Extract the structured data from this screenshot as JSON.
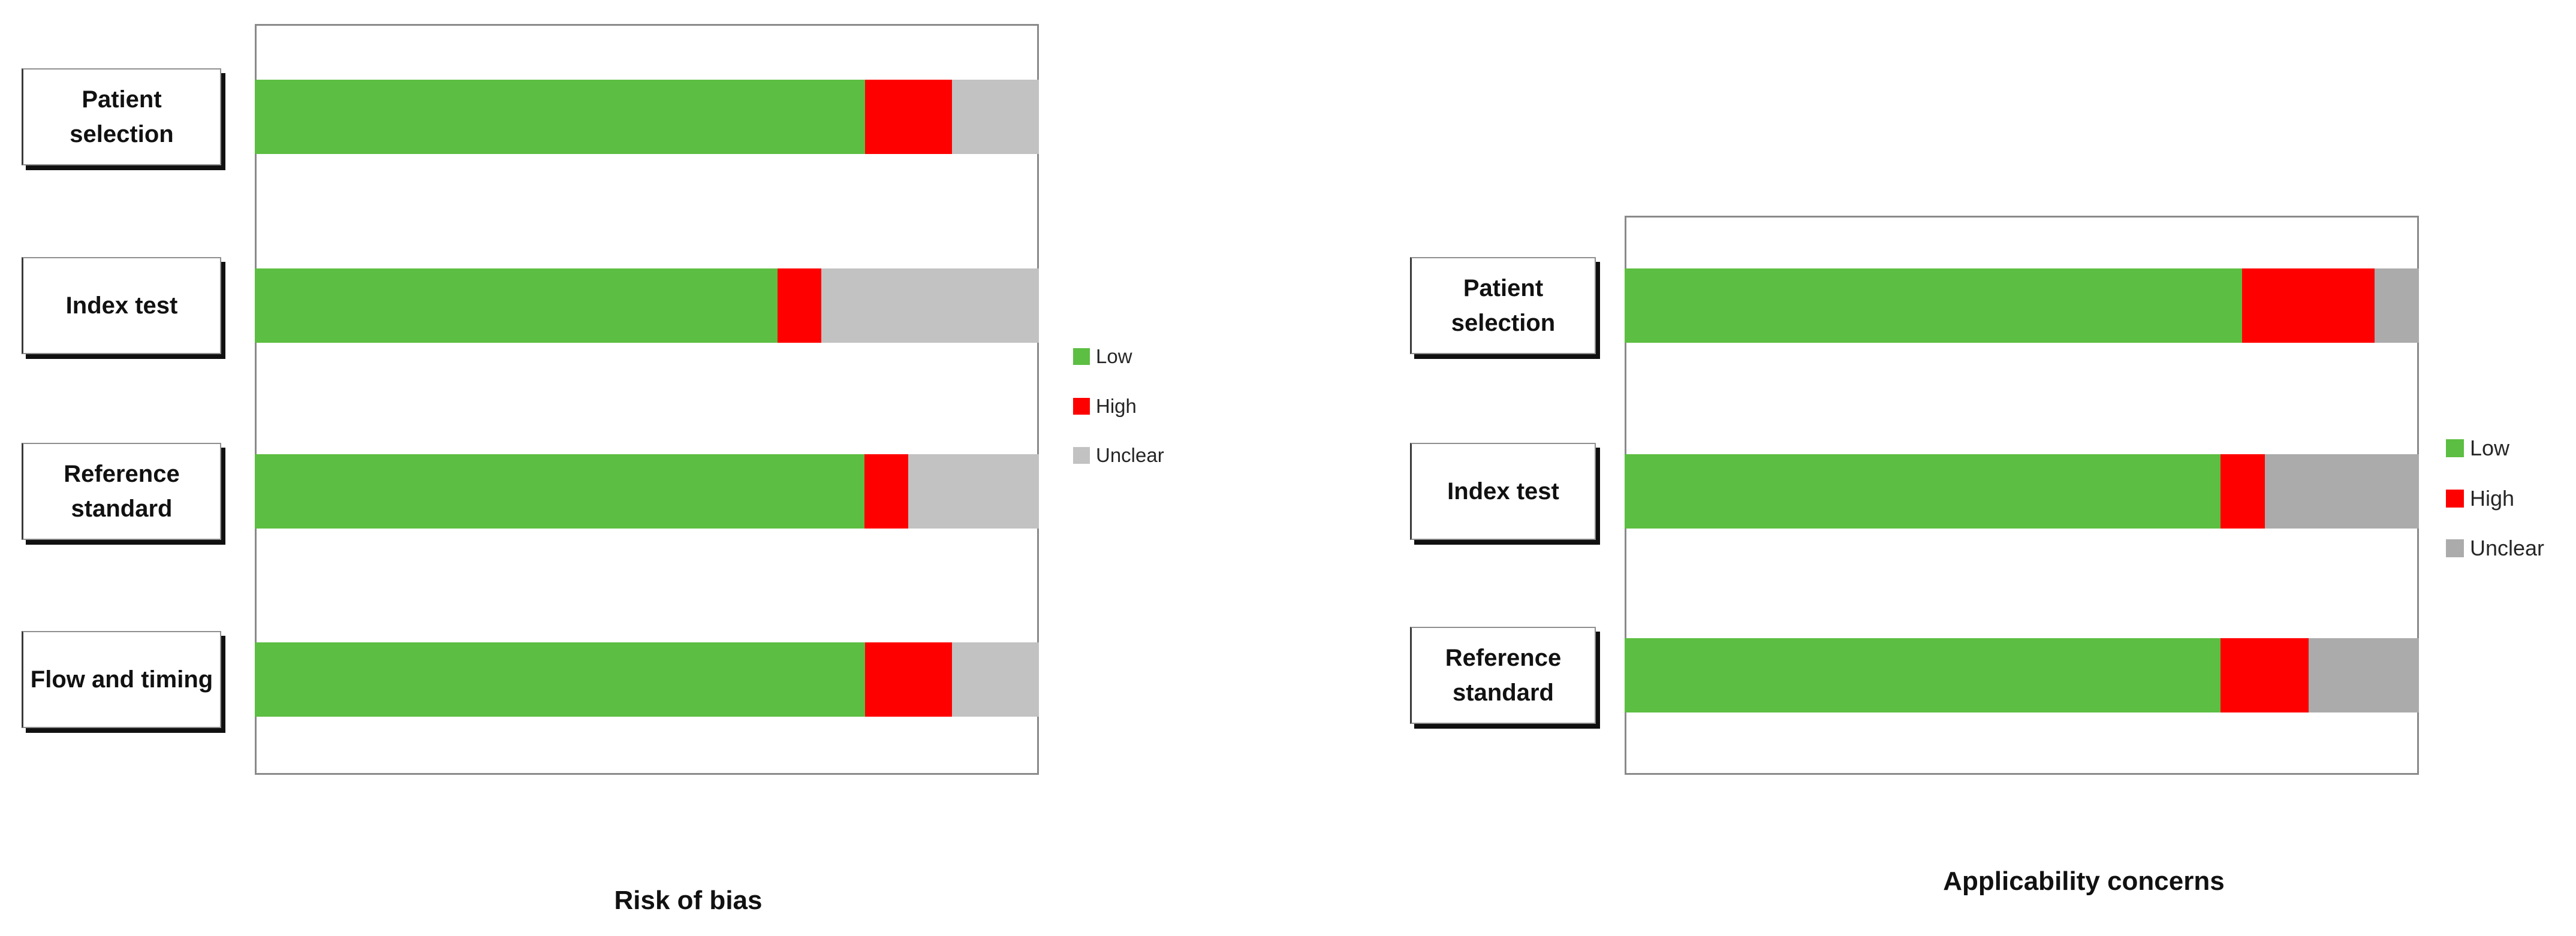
{
  "figure": {
    "background": "#ffffff",
    "description_left_title": "Risk of bias",
    "description_right_title": "Applicability concerns"
  },
  "colors": {
    "low": "#5CBE42",
    "high": "#FF0000",
    "unclear_left": "#C2C2C2",
    "unclear_right": "#ABABAB",
    "plot_border": "#8A8A8A",
    "text": "#111111"
  },
  "chart_data": [
    {
      "type": "bar",
      "variant": "horizontal-stacked-100pct",
      "title": "Risk of bias",
      "categories": [
        "Patient selection",
        "Index test",
        "Reference standard",
        "Flow and timing"
      ],
      "series": [
        {
          "name": "Low",
          "color": "#5CBE42",
          "values_pct": [
            77.8,
            66.7,
            77.8,
            77.8
          ]
        },
        {
          "name": "High",
          "color": "#FF0000",
          "values_pct": [
            11.1,
            5.6,
            5.6,
            11.1
          ]
        },
        {
          "name": "Unclear",
          "color": "#C2C2C2",
          "values_pct": [
            11.1,
            27.8,
            16.7,
            11.1
          ]
        }
      ],
      "xlim": [
        0,
        100
      ],
      "units": "percent of studies",
      "grid": false,
      "axes_hidden": true,
      "legend_position": "right",
      "legend_labels": [
        "Low",
        "High",
        "Unclear"
      ]
    },
    {
      "type": "bar",
      "variant": "horizontal-stacked-100pct",
      "title": "Applicability concerns",
      "categories": [
        "Patient selection",
        "Index test",
        "Reference standard"
      ],
      "series": [
        {
          "name": "Low",
          "color": "#5CBE42",
          "values_pct": [
            77.8,
            75.0,
            75.0
          ]
        },
        {
          "name": "High",
          "color": "#FF0000",
          "values_pct": [
            16.7,
            5.6,
            11.1
          ]
        },
        {
          "name": "Unclear",
          "color": "#ABABAB",
          "values_pct": [
            5.6,
            19.4,
            13.9
          ]
        }
      ],
      "xlim": [
        0,
        100
      ],
      "units": "percent of studies",
      "grid": false,
      "axes_hidden": true,
      "legend_position": "right",
      "legend_labels": [
        "Low",
        "High",
        "Unclear"
      ]
    }
  ]
}
